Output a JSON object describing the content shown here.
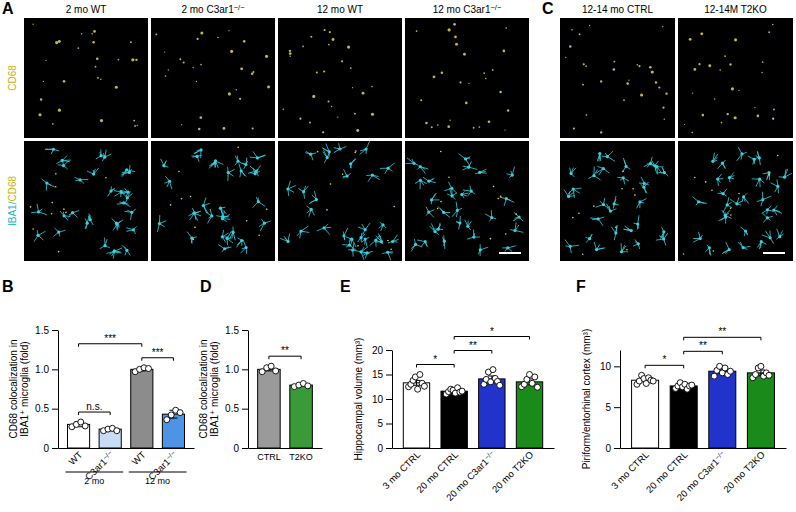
{
  "images": [
    {
      "panel": "A",
      "columns": [
        "2 mo WT",
        "2 mo C3ar1−/−",
        "12 mo WT",
        "12 mo C3ar1−/−"
      ],
      "rows": [
        [
          "CD68"
        ],
        [
          "IBA1/",
          "CD68"
        ]
      ]
    },
    {
      "panel": "C",
      "columns": [
        "12-14 mo CTRL",
        "12-14M T2KO"
      ]
    }
  ],
  "chart_data": [
    {
      "panel": "B",
      "type": "bar",
      "y_label": [
        "CD68 colocalization in",
        "IBA1⁺ microglia (fold)"
      ],
      "categories": [
        "WT",
        "C3ar1−/−",
        "WT",
        "C3ar1−/−"
      ],
      "group_labels": [
        "2 mo",
        "12 mo"
      ],
      "values": [
        0.3,
        0.24,
        1.0,
        0.43
      ],
      "errors": [
        0.03,
        0.02,
        0.02,
        0.05
      ],
      "points": [
        [
          0.27,
          0.3,
          0.33,
          0.28
        ],
        [
          0.22,
          0.24,
          0.25,
          0.22
        ],
        [
          0.97,
          1.0,
          1.02,
          1.01
        ],
        [
          0.36,
          0.42,
          0.48,
          0.45
        ]
      ],
      "colors": [
        "#ffffff",
        "#c9dcf5",
        "#8c8c8c",
        "#4d94e6"
      ],
      "ylim": [
        0,
        1.5
      ],
      "yticks": [
        0,
        0.5,
        {
          "value": 1,
          "label": "1.0"
        },
        1.5
      ],
      "significance": [
        {
          "from": 0,
          "to": 1,
          "label": "n.s."
        },
        {
          "from": 2,
          "to": 3,
          "label": "***"
        },
        {
          "from": 0,
          "to": 2,
          "label": "***"
        }
      ]
    },
    {
      "panel": "D",
      "type": "bar",
      "y_label": [
        "CD68 colocalization in",
        "IBA1⁺ microglia (fold)"
      ],
      "categories": [
        "CTRL",
        "T2KO"
      ],
      "values": [
        1.0,
        0.8
      ],
      "errors": [
        0.02,
        0.01
      ],
      "points": [
        [
          0.97,
          1.02,
          1.04,
          0.98
        ],
        [
          0.78,
          0.8,
          0.82,
          0.79
        ]
      ],
      "colors": [
        "#9a9a9a",
        "#3a9a3a"
      ],
      "ylim": [
        0,
        1.5
      ],
      "yticks": [
        0,
        0.5,
        {
          "value": 1,
          "label": "1.0"
        },
        1.5
      ],
      "significance": [
        {
          "from": 0,
          "to": 1,
          "label": "**"
        }
      ]
    },
    {
      "panel": "E",
      "type": "bar",
      "y_label": "Hippocampal volume (mm³)",
      "categories": [
        "3 mo CTRL",
        "20 mo CTRL",
        "20 mo C3ar1−/−",
        "20 mo T2KO"
      ],
      "values": [
        13.3,
        11.6,
        14.1,
        13.5
      ],
      "errors": [
        0.5,
        0.3,
        0.6,
        0.6
      ],
      "points": [
        [
          12.5,
          13.0,
          13.8,
          14.5,
          12.0,
          15.0,
          13.2,
          12.6
        ],
        [
          11.0,
          11.5,
          12.0,
          11.8,
          11.2,
          12.3,
          11.4,
          11.6
        ],
        [
          13.0,
          14.0,
          15.5,
          13.5,
          16.0,
          14.2,
          13.6,
          12.8
        ],
        [
          12.5,
          13.0,
          14.0,
          15.0,
          13.2,
          14.5,
          12.4
        ]
      ],
      "colors": [
        "#ffffff",
        "#000000",
        "#2233cc",
        "#1a8a1a"
      ],
      "ylim": [
        0,
        20
      ],
      "yticks": [
        0,
        5,
        10,
        15,
        20
      ],
      "significance": [
        {
          "from": 0,
          "to": 1,
          "label": "*"
        },
        {
          "from": 1,
          "to": 2,
          "label": "**"
        },
        {
          "from": 1,
          "to": 3,
          "label": "*"
        }
      ]
    },
    {
      "panel": "F",
      "type": "bar",
      "y_label": "Piriform/entorhinal cortex (mm³)",
      "categories": [
        "3 mo CTRL",
        "20 mo CTRL",
        "20 mo C3ar1−/−",
        "20 mo T2KO"
      ],
      "values": [
        8.3,
        7.6,
        9.4,
        9.2
      ],
      "errors": [
        0.2,
        0.15,
        0.25,
        0.35
      ],
      "points": [
        [
          7.8,
          8.2,
          8.9,
          8.5,
          7.9,
          8.6,
          8.3,
          8.2
        ],
        [
          7.3,
          7.6,
          8.0,
          7.5,
          7.8,
          7.2,
          7.6,
          7.7
        ],
        [
          8.8,
          9.5,
          10.0,
          9.2,
          9.8,
          9.0,
          9.4
        ],
        [
          8.6,
          9.0,
          9.8,
          10.0,
          8.8,
          9.2,
          8.9
        ]
      ],
      "colors": [
        "#ffffff",
        "#000000",
        "#2233cc",
        "#1a8a1a"
      ],
      "ylim": [
        0,
        12
      ],
      "yticks": [
        0,
        5,
        10
      ],
      "significance": [
        {
          "from": 0,
          "to": 1,
          "label": "*"
        },
        {
          "from": 1,
          "to": 2,
          "label": "**"
        },
        {
          "from": 1,
          "to": 3,
          "label": "**"
        }
      ]
    }
  ]
}
